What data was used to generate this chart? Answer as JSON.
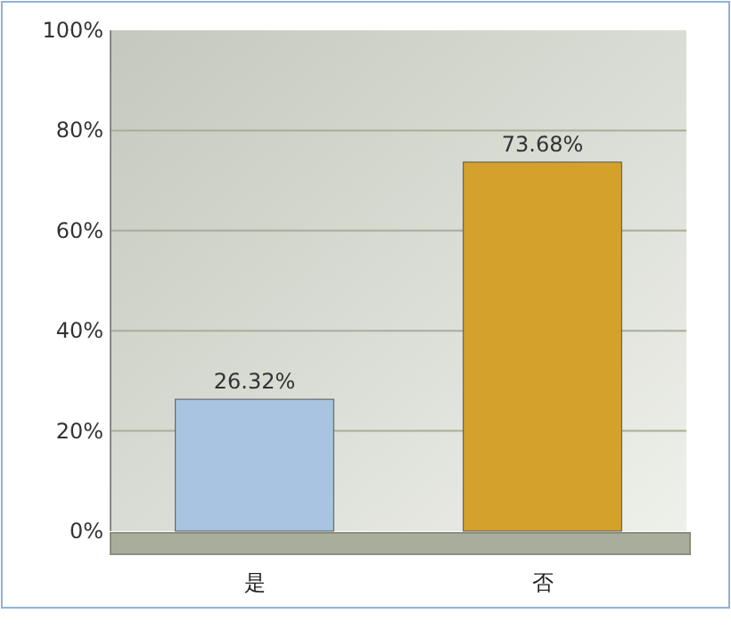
{
  "chart_data": {
    "type": "bar",
    "categories": [
      "是",
      "否"
    ],
    "values": [
      26.32,
      73.68
    ],
    "colors": [
      "#a9c4e0",
      "#d4a12a"
    ],
    "value_labels": [
      "26.32%",
      "73.68%"
    ],
    "ylim": [
      0,
      100
    ],
    "yticks": [
      {
        "value": 0,
        "label": "0%"
      },
      {
        "value": 20,
        "label": "20%"
      },
      {
        "value": 40,
        "label": "40%"
      },
      {
        "value": 60,
        "label": "60%"
      },
      {
        "value": 80,
        "label": "80%"
      },
      {
        "value": 100,
        "label": "100%"
      }
    ],
    "grid": "y"
  }
}
